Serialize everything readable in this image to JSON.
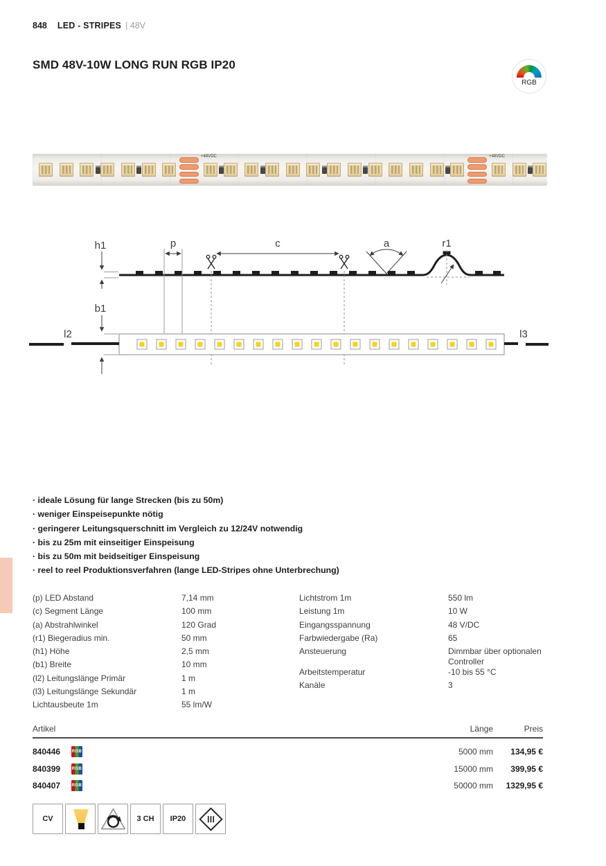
{
  "page": {
    "number": "848",
    "category": "LED - STRIPES",
    "category_suffix": "| 48V",
    "title": "SMD 48V-10W LONG RUN RGB IP20",
    "rgb_label": "RGB"
  },
  "strip_photo": {
    "feed_labels": [
      "+48VDC",
      "+48VDC"
    ]
  },
  "diagram": {
    "labels": {
      "h1": "h1",
      "p": "p",
      "c": "c",
      "a": "a",
      "r1": "r1",
      "b1": "b1",
      "l2": "l2",
      "l3": "l3"
    }
  },
  "features": [
    "ideale Lösung für lange Strecken (bis zu 50m)",
    "weniger Einspeisepunkte nötig",
    "geringerer Leitungsquerschnitt im Vergleich zu 12/24V notwendig",
    "bis zu 25m mit einseitiger Einspeisung",
    "bis zu 50m mit beidseitiger Einspeisung",
    "reel to reel Produktionsverfahren (lange LED-Stripes ohne Unterbrechung)"
  ],
  "specs": {
    "left": [
      {
        "label": "(p) LED Abstand",
        "value": "7,14 mm"
      },
      {
        "label": "(c) Segment Länge",
        "value": "100 mm"
      },
      {
        "label": "(a) Abstrahlwinkel",
        "value": "120 Grad"
      },
      {
        "label": "(r1) Biegeradius min.",
        "value": "50 mm"
      },
      {
        "label": "(h1) Höhe",
        "value": "2,5 mm"
      },
      {
        "label": "(b1) Breite",
        "value": "10 mm"
      },
      {
        "label": "(l2) Leitungslänge Primär",
        "value": "1 m"
      },
      {
        "label": "(l3) Leitungslänge Sekundär",
        "value": "1 m"
      },
      {
        "label": "Lichtausbeute 1m",
        "value": "55 lm/W"
      }
    ],
    "right": [
      {
        "label": "Lichtstrom 1m",
        "value": "550 lm"
      },
      {
        "label": "Leistung 1m",
        "value": "10 W"
      },
      {
        "label": "Eingangsspannung",
        "value": "48 V/DC"
      },
      {
        "label": "Farbwiedergabe (Ra)",
        "value": "65"
      },
      {
        "label": "Ansteuerung",
        "value": "Dimmbar über optionalen Controller"
      },
      {
        "label": "Arbeitstemperatur",
        "value": "-10 bis 55 °C"
      },
      {
        "label": "Kanäle",
        "value": "3"
      }
    ]
  },
  "articles": {
    "headers": {
      "artikel": "Artikel",
      "laenge": "Länge",
      "preis": "Preis"
    },
    "rows": [
      {
        "number": "840446",
        "badge": "RGB",
        "length": "5000 mm",
        "price": "134,95 €"
      },
      {
        "number": "840399",
        "badge": "RGB",
        "length": "15000 mm",
        "price": "399,95 €"
      },
      {
        "number": "840407",
        "badge": "RGB",
        "length": "50000 mm",
        "price": "1329,95 €"
      }
    ]
  },
  "footer": {
    "cv_label": "CV",
    "channels_label": "3 CH",
    "ip_label": "IP20"
  },
  "colors": {
    "accent_tab": "#f6cab6",
    "badge_red": "#c8161d",
    "badge_green": "#3fa02c",
    "badge_blue": "#1d4f9f",
    "pad_orange": "#ef9b6f",
    "led_yellow": "#f6d31b"
  }
}
